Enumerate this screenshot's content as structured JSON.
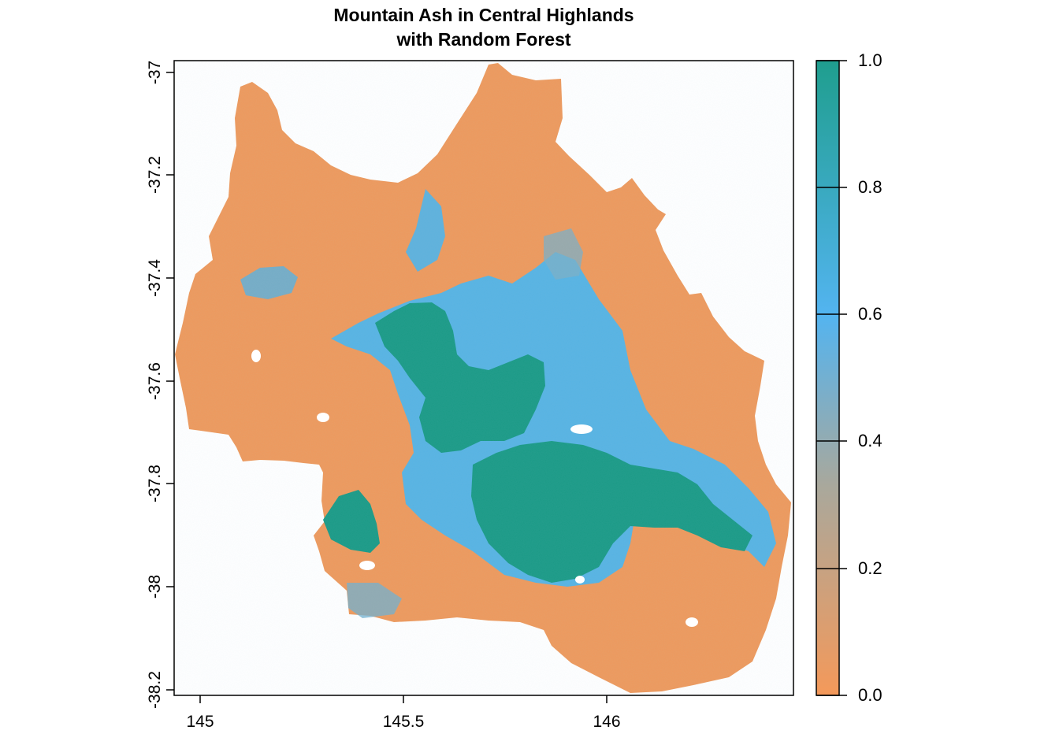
{
  "plot": {
    "title_lines": [
      "Mountain Ash in Central Highlands",
      "with Random Forest"
    ],
    "x_ticks": [
      "145",
      "145.5",
      "146"
    ],
    "y_ticks": [
      "-37",
      "-37.2",
      "-37.4",
      "-37.6",
      "-37.8",
      "-38",
      "-38.2"
    ]
  },
  "legend": {
    "ticks": [
      "0.0",
      "0.2",
      "0.4",
      "0.6",
      "0.8",
      "1.0"
    ],
    "colors": [
      "#F4995A",
      "#A9A89C",
      "#53B4F0",
      "#1F9E8E"
    ]
  },
  "map": {
    "type": "raster_probability",
    "colors": {
      "low": "#EE995C",
      "mid": "#4EB4EA",
      "high": "#1A9A86"
    }
  }
}
